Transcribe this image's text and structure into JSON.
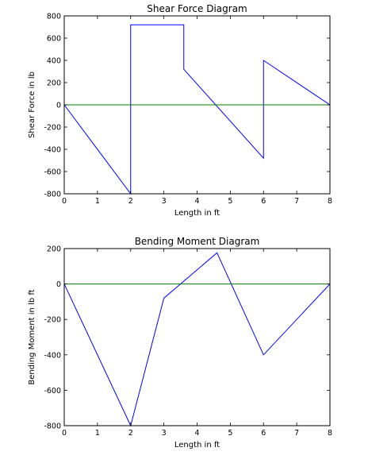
{
  "chart_data": [
    {
      "type": "line",
      "title": "Shear Force Diagram",
      "xlabel": "Length in ft",
      "ylabel": "Shear Force in lb",
      "xlim": [
        0,
        8
      ],
      "ylim": [
        -800,
        800
      ],
      "xticks": [
        "0",
        "1",
        "2",
        "3",
        "4",
        "5",
        "6",
        "7",
        "8"
      ],
      "yticks": [
        "-800",
        "-600",
        "-400",
        "-200",
        "0",
        "200",
        "400",
        "600",
        "800"
      ],
      "grid": false,
      "series": [
        {
          "color": "#0000ff",
          "x": [
            0,
            2,
            2,
            3.6,
            3.6,
            6,
            6,
            8
          ],
          "y": [
            0,
            -800,
            720,
            720,
            320,
            -480,
            400,
            0
          ]
        },
        {
          "color": "#008000",
          "x": [
            0,
            8
          ],
          "y": [
            0,
            0
          ]
        }
      ]
    },
    {
      "type": "line",
      "title": "Bending Moment Diagram",
      "xlabel": "Length in ft",
      "ylabel": "Bending Moment in lb ft",
      "xlim": [
        0,
        8
      ],
      "ylim": [
        -800,
        200
      ],
      "xticks": [
        "0",
        "1",
        "2",
        "3",
        "4",
        "5",
        "6",
        "7",
        "8"
      ],
      "yticks": [
        "-800",
        "-600",
        "-400",
        "-200",
        "0",
        "200"
      ],
      "grid": false,
      "series": [
        {
          "color": "#0000ff",
          "x": [
            0,
            2,
            3,
            4.6,
            6,
            8
          ],
          "y": [
            0,
            -800,
            -80,
            176,
            -400,
            0
          ]
        },
        {
          "color": "#008000",
          "x": [
            0,
            8
          ],
          "y": [
            0,
            0
          ]
        }
      ]
    }
  ]
}
